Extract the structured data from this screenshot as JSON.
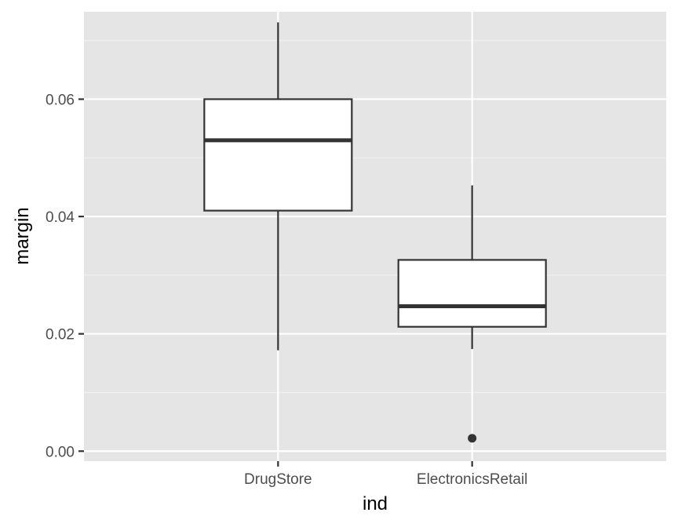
{
  "chart_data": {
    "type": "boxplot",
    "xlabel": "ind",
    "ylabel": "margin",
    "categories": [
      "DrugStore",
      "ElectronicsRetail"
    ],
    "ylim": [
      -0.0017,
      0.0749
    ],
    "yticks": [
      0.0,
      0.02,
      0.04,
      0.06
    ],
    "ytick_labels": [
      "0.00",
      "0.02",
      "0.04",
      "0.06"
    ],
    "grid": true,
    "boxes": [
      {
        "category": "DrugStore",
        "whisker_low": 0.0172,
        "q1": 0.041,
        "median": 0.053,
        "q3": 0.06,
        "whisker_high": 0.0731,
        "outliers": []
      },
      {
        "category": "ElectronicsRetail",
        "whisker_low": 0.0174,
        "q1": 0.0212,
        "median": 0.0247,
        "q3": 0.0326,
        "whisker_high": 0.0453,
        "outliers": [
          0.0022
        ]
      }
    ],
    "colors": {
      "panel_background": "#e5e5e5",
      "grid_major": "#ffffff",
      "grid_minor": "#f2f2f2",
      "box_fill": "#ffffff",
      "box_stroke": "#333333",
      "tick_text": "#4d4d4d",
      "title_text": "#000000"
    }
  }
}
